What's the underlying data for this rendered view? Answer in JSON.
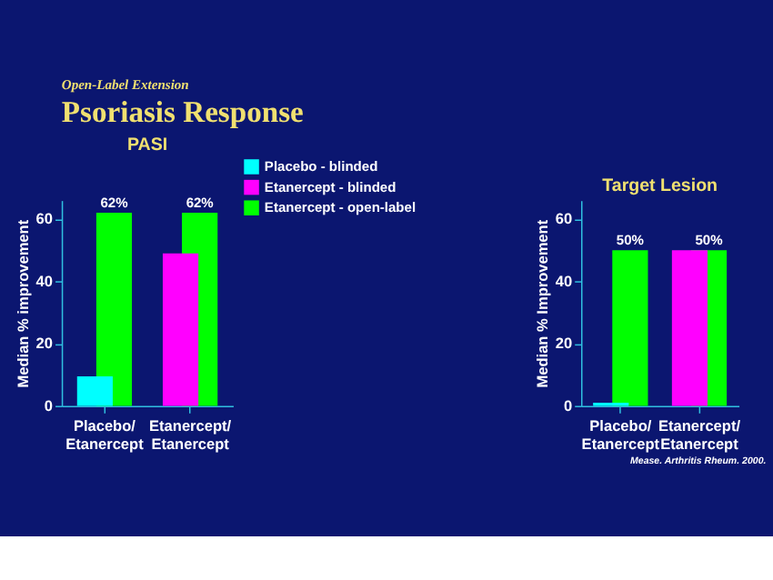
{
  "chart_data": [
    {
      "type": "bar",
      "title": "PASI",
      "annotations": [
        "Open-Label Extension",
        "Psoriasis Response"
      ],
      "ylabel": "Median % improvement",
      "categories": [
        "Placebo/Etanercept",
        "Etanercept/Etanercept"
      ],
      "ylim": [
        0,
        66
      ],
      "yticks": [
        0,
        20,
        40,
        60
      ],
      "grid": false,
      "legend": "top right",
      "series": [
        {
          "name": "Placebo - blinded",
          "color": "#00ffff",
          "values": [
            9.5,
            null
          ]
        },
        {
          "name": "Etanercept - blinded",
          "color": "#ff00ff",
          "values": [
            null,
            49
          ]
        },
        {
          "name": "Etanercept - open-label",
          "color": "#00ff00",
          "values": [
            62,
            62
          ],
          "value_labels": [
            "62%",
            "62%"
          ]
        }
      ]
    },
    {
      "type": "bar",
      "title": "Target Lesion",
      "annotations": [
        "Mease.  Arthritis Rheum. 2000."
      ],
      "ylabel": "Median % Improvement",
      "categories": [
        "Placebo/Etanercept",
        "Etanercept/Etanercept"
      ],
      "ylim": [
        0,
        66
      ],
      "yticks": [
        0,
        20,
        40,
        60
      ],
      "grid": false,
      "series": [
        {
          "color": "#00ffff",
          "values": [
            1,
            null
          ]
        },
        {
          "color": "#ff00ff",
          "values": [
            null,
            50
          ]
        },
        {
          "color": "#00ff00",
          "values": [
            50,
            50
          ],
          "value_labels": [
            "50%",
            "50%"
          ]
        }
      ]
    }
  ]
}
